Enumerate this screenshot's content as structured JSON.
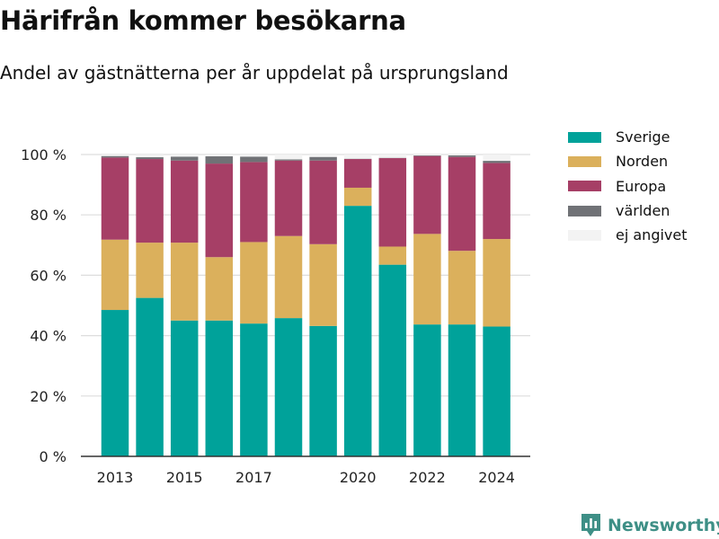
{
  "title": "Härifrån kommer besökarna",
  "subtitle": "Andel av gästnätterna per år uppdelat på ursprungsland",
  "brand": {
    "name": "Newsworthy",
    "icon": "newsworthy-logo-icon",
    "color": "#3e8f86"
  },
  "chart_data": {
    "type": "bar",
    "stacked": true,
    "x": [
      2013,
      2014,
      2015,
      2016,
      2017,
      2018,
      2019,
      2020,
      2021,
      2022,
      2023,
      2024
    ],
    "x_tick_labels": [
      "2013",
      "2015",
      "2017",
      "2020",
      "2022",
      "2024"
    ],
    "y_tick_labels": [
      "0 %",
      "20 %",
      "40 %",
      "60 %",
      "80 %",
      "100 %"
    ],
    "ylim": [
      0,
      100
    ],
    "grid": true,
    "legend_position": "right",
    "series": [
      {
        "name": "Sverige",
        "color": "#00a29a",
        "values": [
          48.5,
          52.5,
          45,
          45,
          44,
          45.8,
          43.2,
          83,
          63.5,
          43.7,
          43.7,
          43
        ]
      },
      {
        "name": "Norden",
        "color": "#dbb05c",
        "values": [
          23.3,
          18.3,
          25.8,
          21,
          27,
          27.2,
          27.1,
          6,
          6,
          30,
          24.4,
          29
        ]
      },
      {
        "name": "Europa",
        "color": "#a63f66",
        "values": [
          27.2,
          27.7,
          27.2,
          31,
          26.5,
          25,
          27.7,
          9.5,
          29.3,
          25.8,
          31.1,
          25.2
        ]
      },
      {
        "name": "världen",
        "color": "#707276",
        "values": [
          0.5,
          0.6,
          1.3,
          2.4,
          1.8,
          0.4,
          1.2,
          0.1,
          0.1,
          0.2,
          0.5,
          0.7
        ]
      },
      {
        "name": "ej angivet",
        "color": "#f3f3f3",
        "values": [
          0.5,
          0.9,
          0.7,
          0.6,
          0.7,
          1.6,
          0.8,
          1.4,
          1.1,
          0.3,
          0.3,
          2.1
        ]
      }
    ]
  }
}
